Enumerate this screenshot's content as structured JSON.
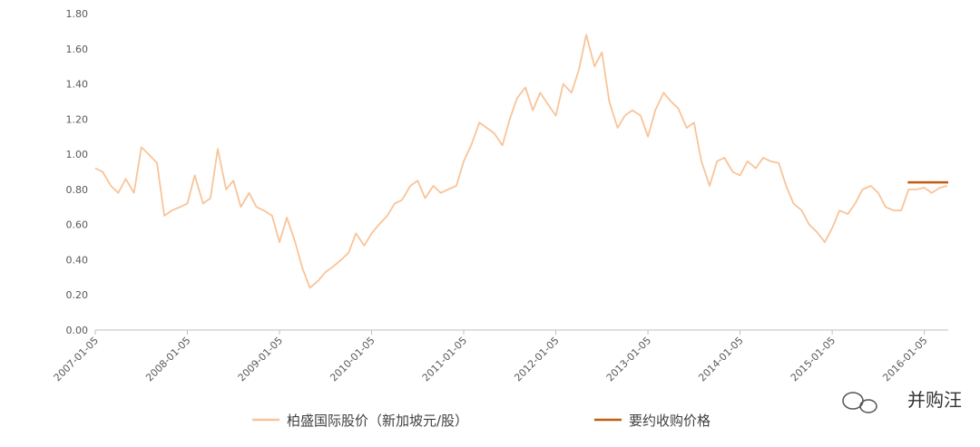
{
  "chart_data": {
    "type": "line",
    "x": [
      2007,
      2007.08,
      2007.17,
      2007.25,
      2007.33,
      2007.42,
      2007.5,
      2007.58,
      2007.67,
      2007.75,
      2007.83,
      2007.92,
      2008,
      2008.08,
      2008.17,
      2008.25,
      2008.33,
      2008.42,
      2008.5,
      2008.58,
      2008.67,
      2008.75,
      2008.83,
      2008.92,
      2009,
      2009.08,
      2009.17,
      2009.25,
      2009.33,
      2009.42,
      2009.5,
      2009.58,
      2009.67,
      2009.75,
      2009.83,
      2009.92,
      2010,
      2010.08,
      2010.17,
      2010.25,
      2010.33,
      2010.42,
      2010.5,
      2010.58,
      2010.67,
      2010.75,
      2010.83,
      2010.92,
      2011,
      2011.08,
      2011.17,
      2011.25,
      2011.33,
      2011.42,
      2011.5,
      2011.58,
      2011.67,
      2011.75,
      2011.83,
      2011.92,
      2012,
      2012.08,
      2012.17,
      2012.25,
      2012.33,
      2012.42,
      2012.5,
      2012.58,
      2012.67,
      2012.75,
      2012.83,
      2012.92,
      2013,
      2013.08,
      2013.17,
      2013.25,
      2013.33,
      2013.42,
      2013.5,
      2013.58,
      2013.67,
      2013.75,
      2013.83,
      2013.92,
      2014,
      2014.08,
      2014.17,
      2014.25,
      2014.33,
      2014.42,
      2014.5,
      2014.58,
      2014.67,
      2014.75,
      2014.83,
      2014.92,
      2015,
      2015.08,
      2015.17,
      2015.25,
      2015.33,
      2015.42,
      2015.5,
      2015.58,
      2015.67,
      2015.75,
      2015.83,
      2015.92,
      2016,
      2016.08,
      2016.17,
      2016.25
    ],
    "series": [
      {
        "name": "柏盛国际股价（新加坡元/股）",
        "color": "#f8c499",
        "values": [
          0.92,
          0.9,
          0.82,
          0.78,
          0.86,
          0.78,
          1.04,
          1.0,
          0.95,
          0.65,
          0.68,
          0.7,
          0.72,
          0.88,
          0.72,
          0.75,
          1.03,
          0.8,
          0.85,
          0.7,
          0.78,
          0.7,
          0.68,
          0.65,
          0.5,
          0.64,
          0.5,
          0.35,
          0.24,
          0.28,
          0.33,
          0.36,
          0.4,
          0.44,
          0.55,
          0.48,
          0.55,
          0.6,
          0.65,
          0.72,
          0.74,
          0.82,
          0.85,
          0.75,
          0.82,
          0.78,
          0.8,
          0.82,
          0.96,
          1.05,
          1.18,
          1.15,
          1.12,
          1.05,
          1.2,
          1.32,
          1.38,
          1.25,
          1.35,
          1.28,
          1.22,
          1.4,
          1.35,
          1.48,
          1.68,
          1.5,
          1.58,
          1.3,
          1.15,
          1.22,
          1.25,
          1.22,
          1.1,
          1.25,
          1.35,
          1.3,
          1.26,
          1.15,
          1.18,
          0.96,
          0.82,
          0.96,
          0.98,
          0.9,
          0.88,
          0.96,
          0.92,
          0.98,
          0.96,
          0.95,
          0.82,
          0.72,
          0.68,
          0.6,
          0.56,
          0.5,
          0.58,
          0.68,
          0.66,
          0.72,
          0.8,
          0.82,
          0.78,
          0.7,
          0.68,
          0.68,
          0.8,
          0.8,
          0.81,
          0.78,
          0.81,
          0.82
        ]
      },
      {
        "name": "要约收购价格",
        "color": "#c55a11",
        "x": [
          2015.82,
          2016.26
        ],
        "values": [
          0.84,
          0.84
        ]
      }
    ],
    "xlim": [
      2007,
      2016.26
    ],
    "xticks": [
      {
        "value": 2007,
        "label": "2007-01-05"
      },
      {
        "value": 2008,
        "label": "2008-01-05"
      },
      {
        "value": 2009,
        "label": "2009-01-05"
      },
      {
        "value": 2010,
        "label": "2010-01-05"
      },
      {
        "value": 2011,
        "label": "2011-01-05"
      },
      {
        "value": 2012,
        "label": "2012-01-05"
      },
      {
        "value": 2013,
        "label": "2013-01-05"
      },
      {
        "value": 2014,
        "label": "2014-01-05"
      },
      {
        "value": 2015,
        "label": "2015-01-05"
      },
      {
        "value": 2016,
        "label": "2016-01-05"
      }
    ],
    "ylim": [
      0,
      1.8
    ],
    "yticks": [
      {
        "value": 0,
        "label": "0.00"
      },
      {
        "value": 0.2,
        "label": "0.20"
      },
      {
        "value": 0.4,
        "label": "0.40"
      },
      {
        "value": 0.6,
        "label": "0.60"
      },
      {
        "value": 0.8,
        "label": "0.80"
      },
      {
        "value": 1.0,
        "label": "1.00"
      },
      {
        "value": 1.2,
        "label": "1.20"
      },
      {
        "value": 1.4,
        "label": "1.40"
      },
      {
        "value": 1.6,
        "label": "1.60"
      },
      {
        "value": 1.8,
        "label": "1.80"
      }
    ],
    "grid": false,
    "legend": "bottom",
    "watermark": "并购汪"
  }
}
